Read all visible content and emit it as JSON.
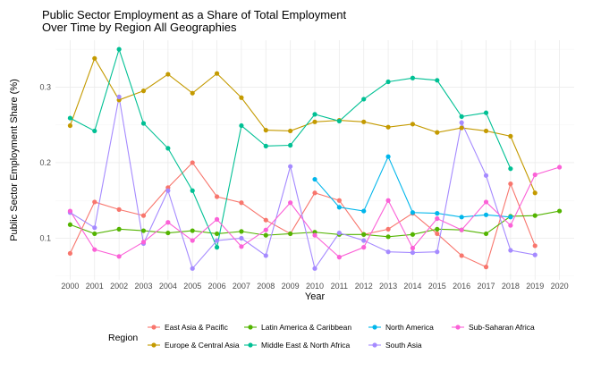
{
  "chart_data": {
    "type": "line",
    "title": "Public Sector Employment as a Share of Total Employment\nOver Time by Region All Geographies",
    "xlabel": "Year",
    "ylabel": "Public Sector Employment Share (%)",
    "x": [
      2000,
      2001,
      2002,
      2003,
      2004,
      2005,
      2006,
      2007,
      2008,
      2009,
      2010,
      2011,
      2012,
      2013,
      2014,
      2015,
      2016,
      2017,
      2018,
      2019,
      2020
    ],
    "xlim": [
      1999.4,
      2020.6
    ],
    "ylim": [
      0.045,
      0.362
    ],
    "yticks": [
      0.1,
      0.2,
      0.3
    ],
    "ytick_labels": [
      "0.1",
      "0.2",
      "0.3"
    ],
    "grid": true,
    "legend_title": "Region",
    "legend_position": "bottom",
    "series": [
      {
        "name": "East Asia & Pacific",
        "color": "#F8766D",
        "values": [
          0.08,
          0.148,
          0.138,
          0.13,
          0.167,
          0.2,
          0.155,
          0.147,
          0.124,
          0.106,
          0.16,
          0.15,
          0.105,
          0.112,
          0.133,
          0.106,
          0.077,
          0.062,
          0.172,
          0.09,
          null
        ]
      },
      {
        "name": "Europe & Central Asia",
        "color": "#C49A00",
        "values": [
          0.249,
          0.338,
          0.283,
          0.295,
          0.317,
          0.292,
          0.318,
          0.286,
          0.243,
          0.242,
          0.254,
          0.256,
          0.254,
          0.247,
          0.251,
          0.24,
          0.246,
          0.242,
          0.235,
          0.16,
          null
        ]
      },
      {
        "name": "Latin America & Caribbean",
        "color": "#53B400",
        "values": [
          0.118,
          0.106,
          0.112,
          0.11,
          0.107,
          0.11,
          0.106,
          0.109,
          0.104,
          0.106,
          0.108,
          0.105,
          0.105,
          0.102,
          0.105,
          0.112,
          0.111,
          0.106,
          0.129,
          0.13,
          0.136
        ]
      },
      {
        "name": "Middle East & North Africa",
        "color": "#00C094",
        "values": [
          0.259,
          0.242,
          0.35,
          0.252,
          0.219,
          0.163,
          0.088,
          0.249,
          0.222,
          0.223,
          0.264,
          0.255,
          0.284,
          0.307,
          0.312,
          0.309,
          0.261,
          0.266,
          0.192,
          null,
          null
        ]
      },
      {
        "name": "North America",
        "color": "#00B6EB",
        "values": [
          null,
          null,
          null,
          null,
          null,
          null,
          null,
          null,
          null,
          null,
          0.178,
          0.141,
          0.136,
          0.208,
          0.134,
          0.133,
          0.128,
          0.131,
          0.128,
          null,
          null
        ]
      },
      {
        "name": "South Asia",
        "color": "#A58AFF",
        "values": [
          0.134,
          0.114,
          0.287,
          0.093,
          0.163,
          0.06,
          0.097,
          0.1,
          0.077,
          0.195,
          0.06,
          0.107,
          0.097,
          0.082,
          0.081,
          0.082,
          0.253,
          0.183,
          0.084,
          0.078,
          null
        ]
      },
      {
        "name": "Sub-Saharan Africa",
        "color": "#FB61D7",
        "values": [
          0.136,
          0.085,
          0.076,
          0.095,
          0.121,
          0.097,
          0.125,
          0.089,
          0.111,
          0.147,
          0.104,
          0.075,
          0.088,
          0.15,
          0.087,
          0.126,
          0.111,
          0.148,
          0.117,
          0.184,
          0.194
        ]
      }
    ]
  }
}
